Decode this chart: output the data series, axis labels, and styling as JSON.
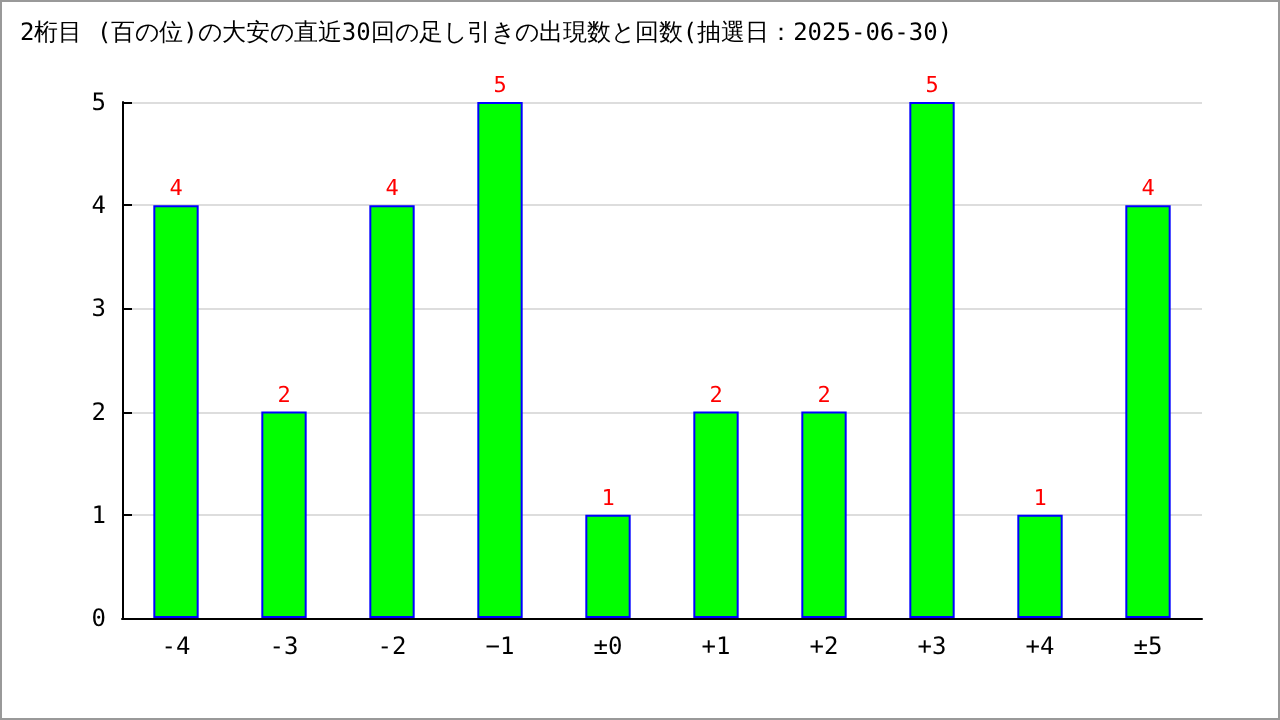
{
  "chart_data": {
    "type": "bar",
    "title": "2桁目 (百の位)の大安の直近30回の足し引きの出現数と回数(抽選日：2025-06-30)",
    "categories": [
      "-4",
      "-3",
      "-2",
      "−1",
      "±0",
      "+1",
      "+2",
      "+3",
      "+4",
      "±5"
    ],
    "values": [
      4,
      2,
      4,
      5,
      1,
      2,
      2,
      5,
      1,
      4
    ],
    "color": "#00ff00",
    "ylim": [
      0,
      5
    ],
    "yticks": [
      0,
      1,
      2,
      3,
      4,
      5
    ],
    "grid": "y",
    "data_labels": true
  }
}
